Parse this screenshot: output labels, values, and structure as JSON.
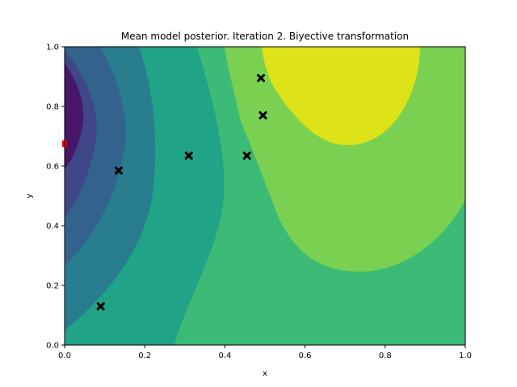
{
  "chart_data": {
    "type": "contour",
    "title": "Mean model posterior. Iteration 2. Biyective transformation",
    "xlabel": "x",
    "ylabel": "y",
    "xlim": [
      0,
      1
    ],
    "ylim": [
      0,
      1
    ],
    "xticks": [
      "0.0",
      "0.2",
      "0.4",
      "0.6",
      "0.8",
      "1.0"
    ],
    "yticks": [
      "0.0",
      "0.2",
      "0.4",
      "0.6",
      "0.8",
      "1.0"
    ],
    "grid": false,
    "legend": "none",
    "colormap": "viridis",
    "contour_levels": 8,
    "observations": {
      "marker": "X",
      "color": "#000000",
      "points": [
        {
          "x": 0.09,
          "y": 0.13
        },
        {
          "x": 0.135,
          "y": 0.585
        },
        {
          "x": 0.31,
          "y": 0.635
        },
        {
          "x": 0.455,
          "y": 0.635
        },
        {
          "x": 0.49,
          "y": 0.895
        },
        {
          "x": 0.495,
          "y": 0.77
        }
      ]
    },
    "highlight": {
      "x": 0.0,
      "y": 0.675,
      "color": "#ff0000"
    }
  }
}
